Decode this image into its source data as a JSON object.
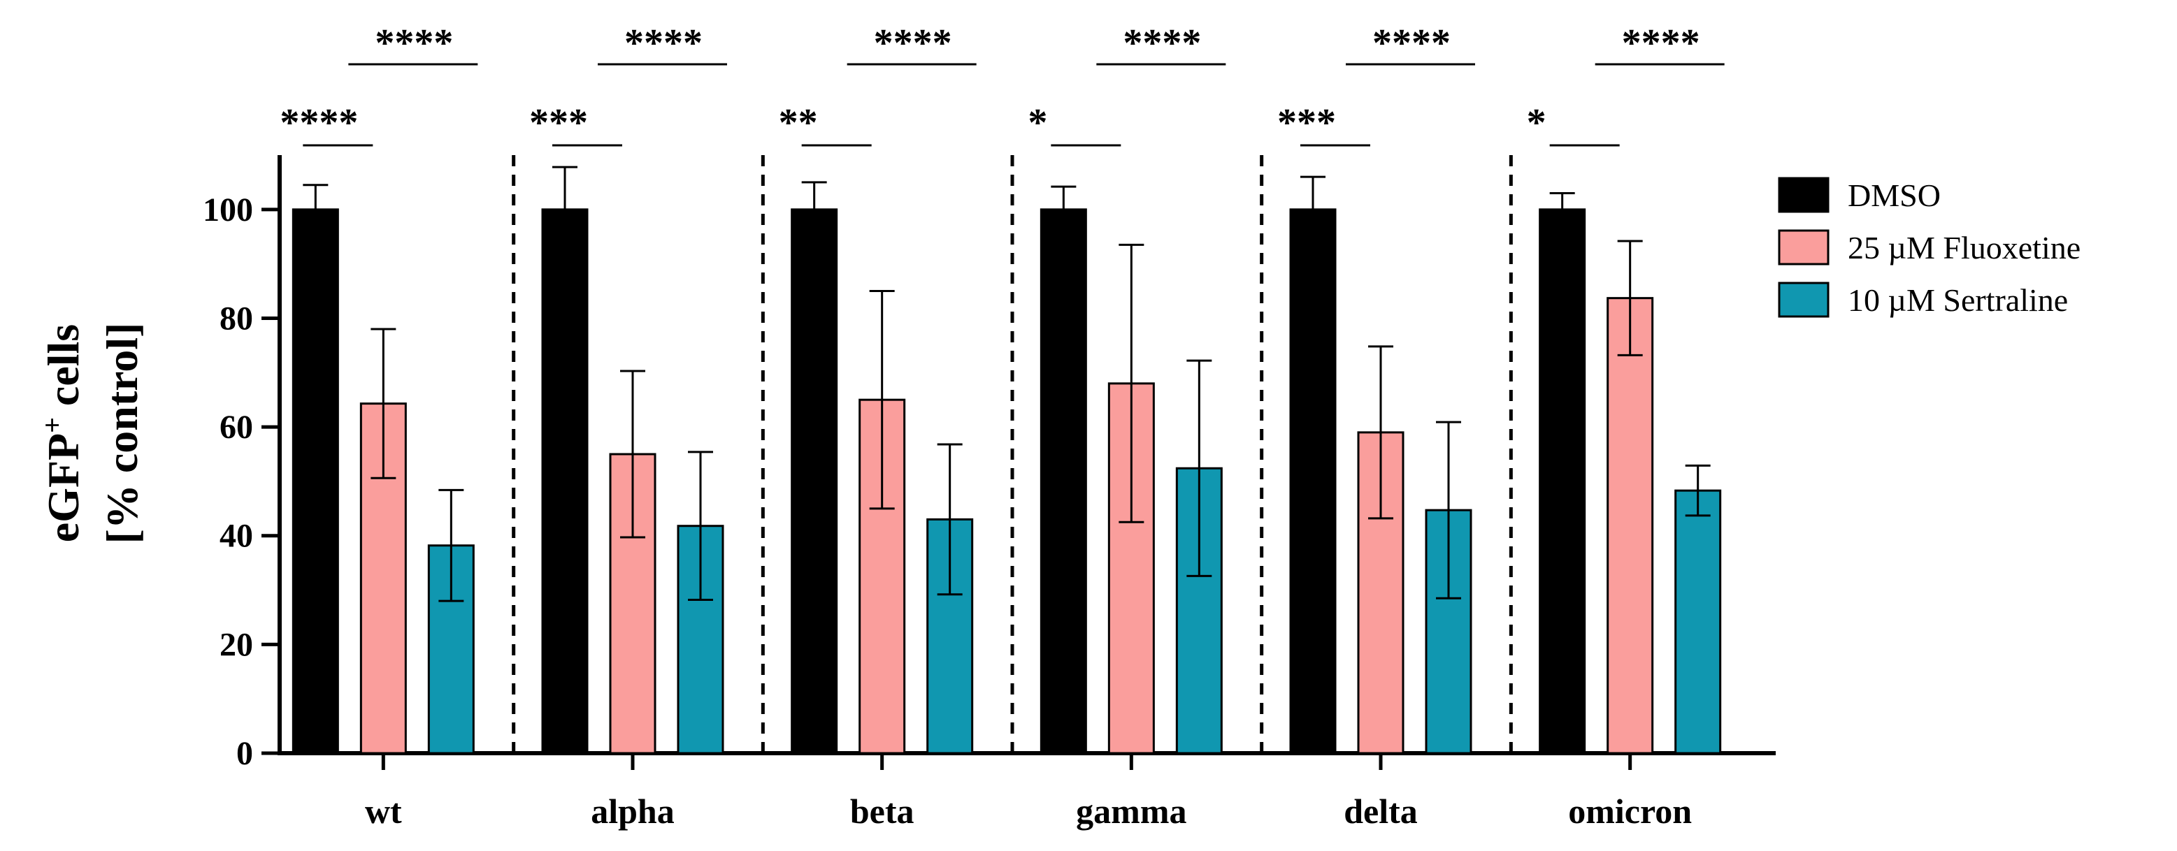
{
  "chart_data": {
    "type": "bar",
    "categories": [
      "wt",
      "alpha",
      "beta",
      "gamma",
      "delta",
      "omicron"
    ],
    "ylabel_line1": "eGFP",
    "ylabel_sup": "+",
    "ylabel_line1_rest": " cells",
    "ylabel_line2": "[% control]",
    "ylim": [
      0,
      110
    ],
    "yticks": [
      0,
      20,
      40,
      60,
      80,
      100
    ],
    "ytick_labels": [
      "0",
      "20",
      "40",
      "60",
      "80",
      "100"
    ],
    "series": [
      {
        "name": "DMSO",
        "color": "#000000",
        "values": [
          100,
          100,
          100,
          100,
          100,
          100
        ],
        "errors": [
          4.5,
          7.8,
          5.0,
          4.2,
          6.0,
          3.0
        ]
      },
      {
        "name": "25 µM Fluoxetine",
        "color": "#FA9E9C",
        "values": [
          64.3,
          55.0,
          65.0,
          68.0,
          59.0,
          83.7
        ],
        "errors": [
          13.7,
          15.3,
          20.0,
          25.5,
          15.8,
          10.5
        ]
      },
      {
        "name": "10 µM Sertraline",
        "color": "#1097B0",
        "values": [
          38.2,
          41.8,
          43.0,
          52.4,
          44.7,
          48.3
        ],
        "errors": [
          10.2,
          13.6,
          13.8,
          19.8,
          16.2,
          4.6
        ]
      }
    ],
    "significance": [
      {
        "category": "wt",
        "dmso_vs_fluoxetine": "****",
        "dmso_vs_sertraline": "****"
      },
      {
        "category": "alpha",
        "dmso_vs_fluoxetine": "***",
        "dmso_vs_sertraline": "****"
      },
      {
        "category": "beta",
        "dmso_vs_fluoxetine": "**",
        "dmso_vs_sertraline": "****"
      },
      {
        "category": "gamma",
        "dmso_vs_fluoxetine": "*",
        "dmso_vs_sertraline": "****"
      },
      {
        "category": "delta",
        "dmso_vs_fluoxetine": "***",
        "dmso_vs_sertraline": "****"
      },
      {
        "category": "omicron",
        "dmso_vs_fluoxetine": "*",
        "dmso_vs_sertraline": "****"
      }
    ],
    "group_separators": "dashed",
    "legend_position": "right",
    "grid": false
  }
}
